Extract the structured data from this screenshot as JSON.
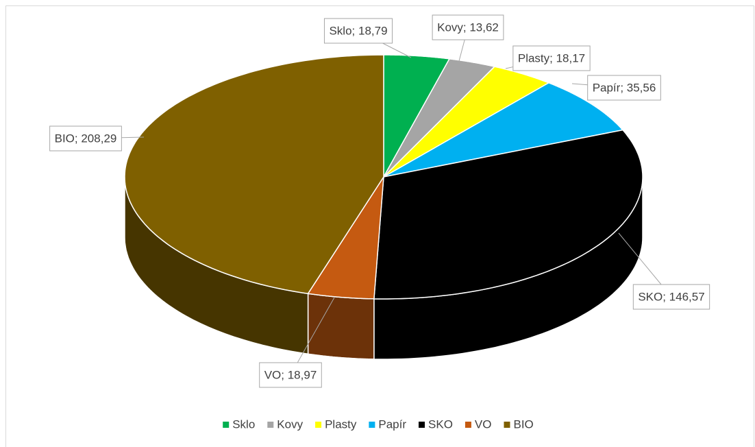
{
  "chart_data": {
    "type": "pie",
    "categories": [
      "Sklo",
      "Kovy",
      "Plasty",
      "Papír",
      "SKO",
      "VO",
      "BIO"
    ],
    "values": [
      18.79,
      13.62,
      18.17,
      35.56,
      146.57,
      18.97,
      208.29
    ],
    "value_labels": [
      "Sklo; 18,79",
      "Kovy; 13,62",
      "Plasty; 18,17",
      "Papír; 35,56",
      "SKO; 146,57",
      "VO; 18,97",
      "BIO; 208,29"
    ],
    "colors": [
      "#00b050",
      "#a5a5a5",
      "#ffff00",
      "#00b0f0",
      "#000000",
      "#c55a11",
      "#7f6000"
    ],
    "legend": "bottom"
  }
}
